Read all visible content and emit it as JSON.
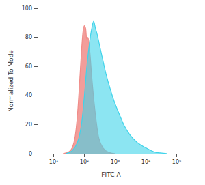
{
  "chart_data": {
    "type": "area",
    "log": "x",
    "xlabel": "FITC-A",
    "ylabel": "Normalized To Mode",
    "xlim": [
      3,
      180000
    ],
    "ylim": [
      0,
      100
    ],
    "xticks": [
      {
        "value": 10,
        "label": "10¹"
      },
      {
        "value": 100,
        "label": "10²"
      },
      {
        "value": 1000,
        "label": "10³"
      },
      {
        "value": 10000,
        "label": "10⁴"
      },
      {
        "value": 100000,
        "label": "10⁵"
      }
    ],
    "yticks": [
      0,
      20,
      40,
      60,
      80,
      100
    ],
    "grid": false,
    "series": [
      {
        "color": "#f08c88",
        "x": [
          20,
          30,
          40,
          50,
          60,
          70,
          80,
          90,
          100,
          110,
          120,
          130,
          150,
          170,
          200,
          250,
          300,
          400,
          600,
          1000
        ],
        "values": [
          0,
          1,
          4,
          12,
          28,
          50,
          70,
          84,
          88,
          86,
          78,
          80,
          70,
          55,
          38,
          20,
          10,
          4,
          1,
          0
        ]
      },
      {
        "color": "#3fd3ea",
        "x": [
          25,
          40,
          60,
          80,
          100,
          120,
          150,
          180,
          200,
          230,
          260,
          300,
          400,
          500,
          700,
          1000,
          1500,
          2000,
          3000,
          5000,
          8000,
          10000,
          15000,
          20000,
          30000,
          50000
        ],
        "values": [
          0,
          2,
          8,
          20,
          40,
          60,
          78,
          88,
          91,
          86,
          82,
          76,
          64,
          55,
          44,
          34,
          25,
          19,
          13,
          8,
          5,
          4,
          2,
          1,
          0.5,
          0
        ]
      }
    ]
  }
}
